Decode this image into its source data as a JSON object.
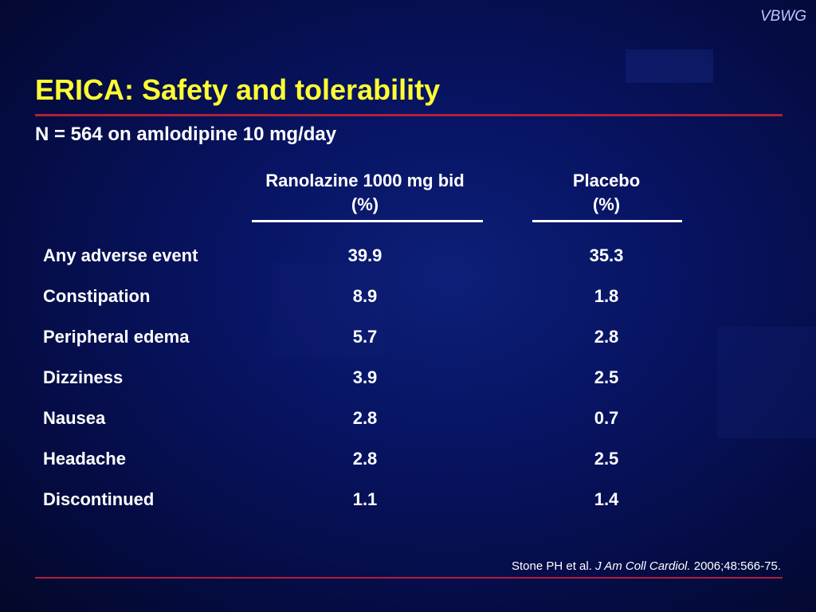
{
  "brand": {
    "logo": "VBWG"
  },
  "slide": {
    "title": "ERICA: Safety and tolerability",
    "subtitle": "N = 564 on amlodipine 10 mg/day"
  },
  "table": {
    "columns": [
      {
        "line1": "Ranolazine 1000 mg bid",
        "line2": "(%)"
      },
      {
        "line1": "Placebo",
        "line2": "(%)"
      }
    ],
    "rows": [
      {
        "label": "Any adverse event",
        "ranolazine": "39.9",
        "placebo": "35.3"
      },
      {
        "label": "Constipation",
        "ranolazine": "8.9",
        "placebo": "1.8"
      },
      {
        "label": "Peripheral edema",
        "ranolazine": "5.7",
        "placebo": "2.8"
      },
      {
        "label": "Dizziness",
        "ranolazine": "3.9",
        "placebo": "2.5"
      },
      {
        "label": "Nausea",
        "ranolazine": "2.8",
        "placebo": "0.7"
      },
      {
        "label": "Headache",
        "ranolazine": "2.8",
        "placebo": "2.5"
      },
      {
        "label": "Discontinued",
        "ranolazine": "1.1",
        "placebo": "1.4"
      }
    ]
  },
  "citation": {
    "authors": "Stone PH et al.",
    "journal": "J Am Coll Cardiol.",
    "ref": "2006;48:566-75."
  },
  "colors": {
    "title": "#ffff33",
    "accent_rule": "#b0203a",
    "background": "#081463",
    "text": "#ffffff"
  }
}
